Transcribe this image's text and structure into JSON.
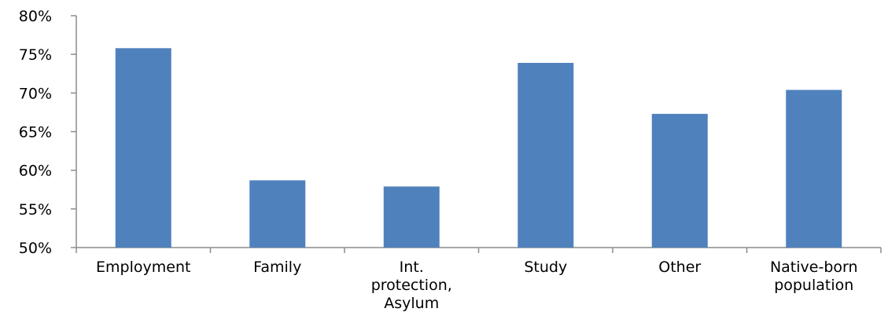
{
  "chart_data": {
    "type": "bar",
    "categories": [
      [
        "Employment"
      ],
      [
        "Family"
      ],
      [
        "Int.",
        "protection,",
        "Asylum"
      ],
      [
        "Study"
      ],
      [
        "Other"
      ],
      [
        "Native-born",
        "population"
      ]
    ],
    "values": [
      75.8,
      58.7,
      57.9,
      73.9,
      67.3,
      70.4
    ],
    "value_unit": "%",
    "ylim": [
      50,
      80
    ],
    "yticks": [
      50,
      55,
      60,
      65,
      70,
      75,
      80
    ],
    "ytick_labels": [
      "50%",
      "55%",
      "60%",
      "65%",
      "70%",
      "75%",
      "80%"
    ],
    "title": "",
    "xlabel": "",
    "ylabel": "",
    "grid": false,
    "legend": "none",
    "bar_color": "#4f81bd",
    "axis_color": "#8c8c8c"
  }
}
